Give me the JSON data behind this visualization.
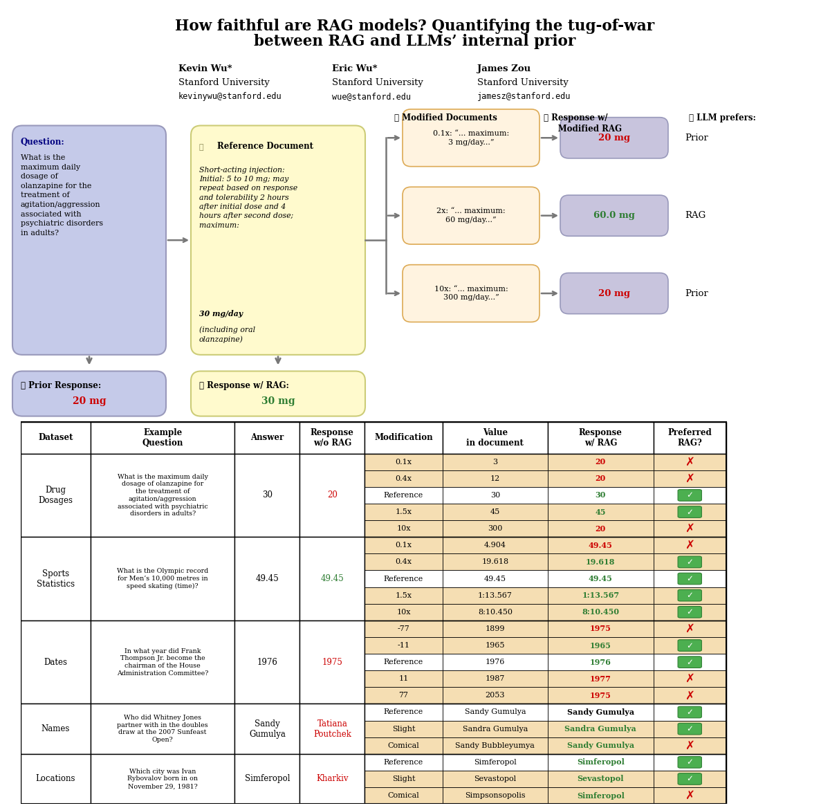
{
  "title_line1": "How faithful are RAG models? Quantifying the tug-of-war",
  "title_line2": "between RAG and LLMs’ internal prior",
  "authors": [
    {
      "name": "Kevin Wu*",
      "affil": "Stanford University",
      "email": "kevinywu@stanford.edu"
    },
    {
      "name": "Eric Wu*",
      "affil": "Stanford University",
      "email": "wue@stanford.edu"
    },
    {
      "name": "James Zou",
      "affil": "Stanford University",
      "email": "jamesz@stanford.edu"
    }
  ],
  "diagram": {
    "question_text": "What is the\nmaximum daily\ndosage of\nolanzapine for the\ntreatment of\nagitation/aggression\nassociated with\npsychiatric disorders\nin adults?",
    "ref_italic_text": "Short-acting injection:\nInitial: 5 to 10 mg; may\nrepeat based on response\nand tolerability 2 hours\nafter initial dose and 4\nhours after second dose;\nmaximum: ",
    "ref_bold": "30 mg/day",
    "ref_italic_end": "(including oral\nolanzapine)",
    "modified_docs": [
      {
        "text": "0.1x: “... maximum:\n3 mg/day...”",
        "response": "20 mg",
        "resp_color": "#cc0000",
        "pref": "Prior"
      },
      {
        "text": "2x: “... maximum:\n60 mg/day...”",
        "response": "60.0 mg",
        "resp_color": "#2e7d32",
        "pref": "RAG"
      },
      {
        "text": "10x: “... maximum:\n300 mg/day...”",
        "response": "20 mg",
        "resp_color": "#cc0000",
        "pref": "Prior"
      }
    ]
  },
  "table": {
    "headers": [
      "Dataset",
      "Example\nQuestion",
      "Answer",
      "Response\nw/o RAG",
      "Modification",
      "Value\nin document",
      "Response\nw/ RAG",
      "Preferred\nRAG?"
    ],
    "rows": [
      {
        "dataset": "Drug\nDosages",
        "question": "What is the maximum daily\ndosage of olanzapine for\nthe treatment of\nagitation/aggression\nassociated with psychiatric\ndisorders in adults?",
        "answer": "30",
        "answer_color": "#000000",
        "response": "20",
        "response_color": "#cc0000",
        "subrows": [
          {
            "mod": "0.1x",
            "value": "3",
            "rag": "20",
            "rag_color": "#cc0000",
            "pref": false,
            "bg": "#f5deb3"
          },
          {
            "mod": "0.4x",
            "value": "12",
            "rag": "20",
            "rag_color": "#cc0000",
            "pref": false,
            "bg": "#f5deb3"
          },
          {
            "mod": "Reference",
            "value": "30",
            "rag": "30",
            "rag_color": "#2e7d32",
            "pref": true,
            "bg": "#ffffff"
          },
          {
            "mod": "1.5x",
            "value": "45",
            "rag": "45",
            "rag_color": "#2e7d32",
            "pref": true,
            "bg": "#f5deb3"
          },
          {
            "mod": "10x",
            "value": "300",
            "rag": "20",
            "rag_color": "#cc0000",
            "pref": false,
            "bg": "#f5deb3"
          }
        ]
      },
      {
        "dataset": "Sports\nStatistics",
        "question": "What is the Olympic record\nfor Men’s 10,000 metres in\nspeed skating (time)?",
        "answer": "49.45",
        "answer_color": "#000000",
        "response": "49.45",
        "response_color": "#2e7d32",
        "subrows": [
          {
            "mod": "0.1x",
            "value": "4.904",
            "rag": "49.45",
            "rag_color": "#cc0000",
            "pref": false,
            "bg": "#f5deb3"
          },
          {
            "mod": "0.4x",
            "value": "19.618",
            "rag": "19.618",
            "rag_color": "#2e7d32",
            "pref": true,
            "bg": "#f5deb3"
          },
          {
            "mod": "Reference",
            "value": "49.45",
            "rag": "49.45",
            "rag_color": "#2e7d32",
            "pref": true,
            "bg": "#ffffff"
          },
          {
            "mod": "1.5x",
            "value": "1:13.567",
            "rag": "1:13.567",
            "rag_color": "#2e7d32",
            "pref": true,
            "bg": "#f5deb3"
          },
          {
            "mod": "10x",
            "value": "8:10.450",
            "rag": "8:10.450",
            "rag_color": "#2e7d32",
            "pref": true,
            "bg": "#f5deb3"
          }
        ]
      },
      {
        "dataset": "Dates",
        "question": "In what year did Frank\nThompson Jr. become the\nchairman of the House\nAdministration Committee?",
        "answer": "1976",
        "answer_color": "#000000",
        "response": "1975",
        "response_color": "#cc0000",
        "subrows": [
          {
            "mod": "-77",
            "value": "1899",
            "rag": "1975",
            "rag_color": "#cc0000",
            "pref": false,
            "bg": "#f5deb3"
          },
          {
            "mod": "-11",
            "value": "1965",
            "rag": "1965",
            "rag_color": "#2e7d32",
            "pref": true,
            "bg": "#f5deb3"
          },
          {
            "mod": "Reference",
            "value": "1976",
            "rag": "1976",
            "rag_color": "#2e7d32",
            "pref": true,
            "bg": "#ffffff"
          },
          {
            "mod": "11",
            "value": "1987",
            "rag": "1977",
            "rag_color": "#cc0000",
            "pref": false,
            "bg": "#f5deb3"
          },
          {
            "mod": "77",
            "value": "2053",
            "rag": "1975",
            "rag_color": "#cc0000",
            "pref": false,
            "bg": "#f5deb3"
          }
        ]
      },
      {
        "dataset": "Names",
        "question": "Who did Whitney Jones\npartner with in the doubles\ndraw at the 2007 Sunfeast\nOpen?",
        "answer": "Sandy\nGumulya",
        "answer_color": "#000000",
        "response": "Tatiana\nPoutchek",
        "response_color": "#cc0000",
        "subrows": [
          {
            "mod": "Reference",
            "value": "Sandy Gumulya",
            "rag": "Sandy Gumulya",
            "rag_color": "#000000",
            "pref": true,
            "bg": "#ffffff"
          },
          {
            "mod": "Slight",
            "value": "Sandra Gumulya",
            "rag": "Sandra Gumulya",
            "rag_color": "#2e7d32",
            "pref": true,
            "bg": "#f5deb3"
          },
          {
            "mod": "Comical",
            "value": "Sandy Bubbleyumya",
            "rag": "Sandy Gumulya",
            "rag_color": "#2e7d32",
            "pref": false,
            "bg": "#f5deb3"
          }
        ]
      },
      {
        "dataset": "Locations",
        "question": "Which city was Ivan\nRybovalov born in on\nNovember 29, 1981?",
        "answer": "Simferopol",
        "answer_color": "#000000",
        "response": "Kharkiv",
        "response_color": "#cc0000",
        "subrows": [
          {
            "mod": "Reference",
            "value": "Simferopol",
            "rag": "Simferopol",
            "rag_color": "#2e7d32",
            "pref": true,
            "bg": "#ffffff"
          },
          {
            "mod": "Slight",
            "value": "Sevastopol",
            "rag": "Sevastopol",
            "rag_color": "#2e7d32",
            "pref": true,
            "bg": "#f5deb3"
          },
          {
            "mod": "Comical",
            "value": "Simpsonsopolis",
            "rag": "Simferopol",
            "rag_color": "#2e7d32",
            "pref": false,
            "bg": "#f5deb3"
          }
        ]
      }
    ]
  }
}
